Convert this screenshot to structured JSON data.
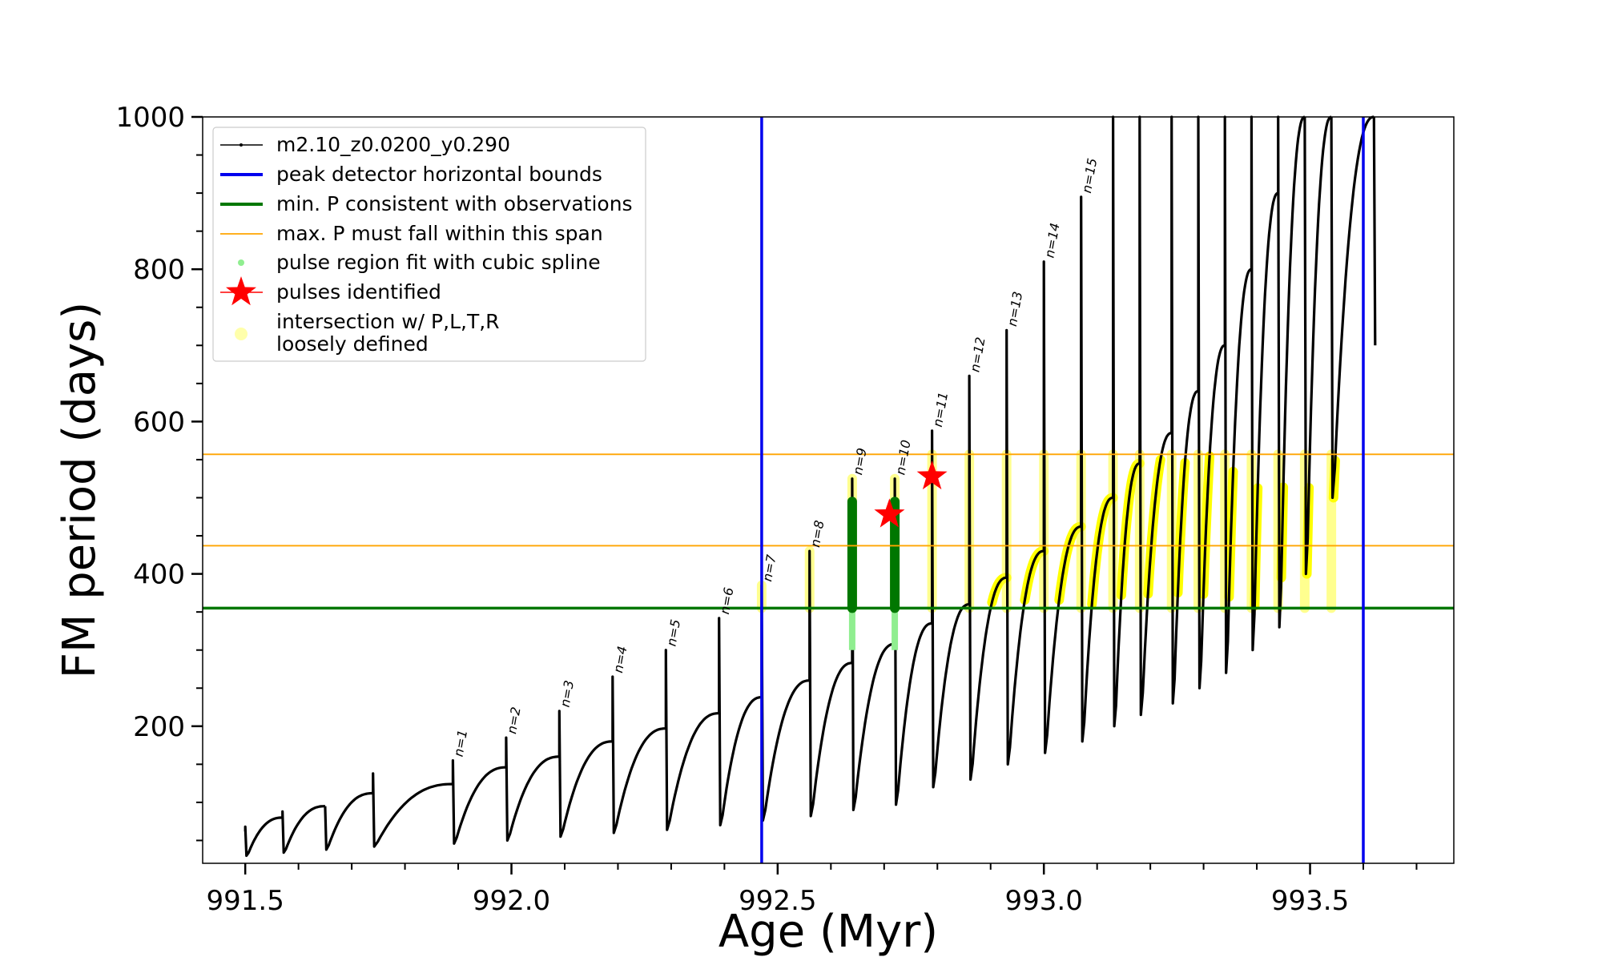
{
  "chart_data": {
    "type": "line",
    "xlabel": "Age (Myr)",
    "ylabel": "FM period (days)",
    "xlim": [
      991.42,
      993.77
    ],
    "ylim": [
      20,
      1000
    ],
    "x_ticks": [
      991.5,
      992.0,
      992.5,
      993.0,
      993.5
    ],
    "x_tick_labels": [
      "991.5",
      "992.0",
      "992.5",
      "993.0",
      "993.5"
    ],
    "y_ticks": [
      200,
      400,
      600,
      800,
      1000
    ],
    "y_tick_labels": [
      "200",
      "400",
      "600",
      "800",
      "1000"
    ],
    "x_minor_step": 0.1,
    "y_minor_step": 50,
    "legend_placement": "upper-left",
    "grid": false,
    "series": [
      {
        "name": "m2.10_z0.0200_y0.290",
        "color": "#000000",
        "style": "line-with-dots"
      },
      {
        "name": "peak detector horizontal bounds",
        "color": "#0000ee",
        "style": "vline",
        "values": [
          992.47,
          993.6
        ]
      },
      {
        "name": "min. P consistent with observations",
        "color": "#007700",
        "style": "hline",
        "values": [
          355
        ]
      },
      {
        "name": "max. P must fall within this span",
        "color": "#ffa500",
        "style": "hline",
        "values": [
          437,
          557
        ]
      },
      {
        "name": "pulse region fit with cubic spline",
        "color": "#90ee90",
        "style": "marker"
      },
      {
        "name": "pulses identified",
        "color": "#ff0000",
        "style": "star",
        "points": [
          {
            "x": 992.71,
            "y": 478
          },
          {
            "x": 992.79,
            "y": 528
          }
        ]
      },
      {
        "name": "intersection w/ P,L,T,R\nloosely defined",
        "color": "#ffff00",
        "style": "marker"
      }
    ],
    "pulses": [
      {
        "label": "n=1",
        "x": 991.89,
        "base": 46,
        "peak": 124,
        "spike": 155
      },
      {
        "label": "n=2",
        "x": 991.99,
        "base": 50,
        "peak": 146,
        "spike": 185
      },
      {
        "label": "n=3",
        "x": 992.09,
        "base": 55,
        "peak": 160,
        "spike": 220
      },
      {
        "label": "n=4",
        "x": 992.19,
        "base": 60,
        "peak": 180,
        "spike": 265
      },
      {
        "label": "n=5",
        "x": 992.29,
        "base": 64,
        "peak": 197,
        "spike": 300
      },
      {
        "label": "n=6",
        "x": 992.39,
        "base": 70,
        "peak": 217,
        "spike": 342
      },
      {
        "label": "n=7",
        "x": 992.47,
        "base": 76,
        "peak": 238,
        "spike": 385
      },
      {
        "label": "n=8",
        "x": 992.56,
        "base": 82,
        "peak": 260,
        "spike": 430
      },
      {
        "label": "n=9",
        "x": 992.64,
        "base": 90,
        "peak": 283,
        "spike": 525
      },
      {
        "label": "n=10",
        "x": 992.72,
        "base": 97,
        "peak": 308,
        "spike": 525
      },
      {
        "label": "n=11",
        "x": 992.79,
        "base": 120,
        "peak": 335,
        "spike": 588
      },
      {
        "label": "n=12",
        "x": 992.86,
        "base": 130,
        "peak": 360,
        "spike": 660
      },
      {
        "label": "n=13",
        "x": 992.93,
        "base": 150,
        "peak": 395,
        "spike": 720
      },
      {
        "label": "n=14",
        "x": 993.0,
        "base": 165,
        "peak": 430,
        "spike": 810
      },
      {
        "label": "n=15",
        "x": 993.07,
        "base": 180,
        "peak": 462,
        "spike": 895
      }
    ],
    "pre_pulses": [
      {
        "x": 991.5,
        "base": 30,
        "peak": 62,
        "spike": 68
      },
      {
        "x": 991.57,
        "base": 34,
        "peak": 80,
        "spike": 88
      },
      {
        "x": 991.65,
        "base": 38,
        "peak": 95,
        "spike": 95
      },
      {
        "x": 991.74,
        "base": 42,
        "peak": 112,
        "spike": 138
      }
    ],
    "late_pulses": [
      {
        "x": 993.13,
        "base": 200,
        "peak": 500,
        "spike": 1000
      },
      {
        "x": 993.18,
        "base": 215,
        "peak": 545,
        "spike": 1000
      },
      {
        "x": 993.24,
        "base": 230,
        "peak": 585,
        "spike": 1000
      },
      {
        "x": 993.29,
        "base": 250,
        "peak": 640,
        "spike": 1000
      },
      {
        "x": 993.34,
        "base": 270,
        "peak": 700,
        "spike": 1000
      },
      {
        "x": 993.39,
        "base": 300,
        "peak": 800,
        "spike": 1000
      },
      {
        "x": 993.44,
        "base": 330,
        "peak": 900,
        "spike": 1000
      },
      {
        "x": 993.49,
        "base": 400,
        "peak": 1000,
        "spike": 1000
      },
      {
        "x": 993.54,
        "base": 500,
        "peak": 1000,
        "spike": 1000
      },
      {
        "x": 993.62,
        "base": 700,
        "peak": 1000,
        "spike": 1000
      }
    ]
  }
}
